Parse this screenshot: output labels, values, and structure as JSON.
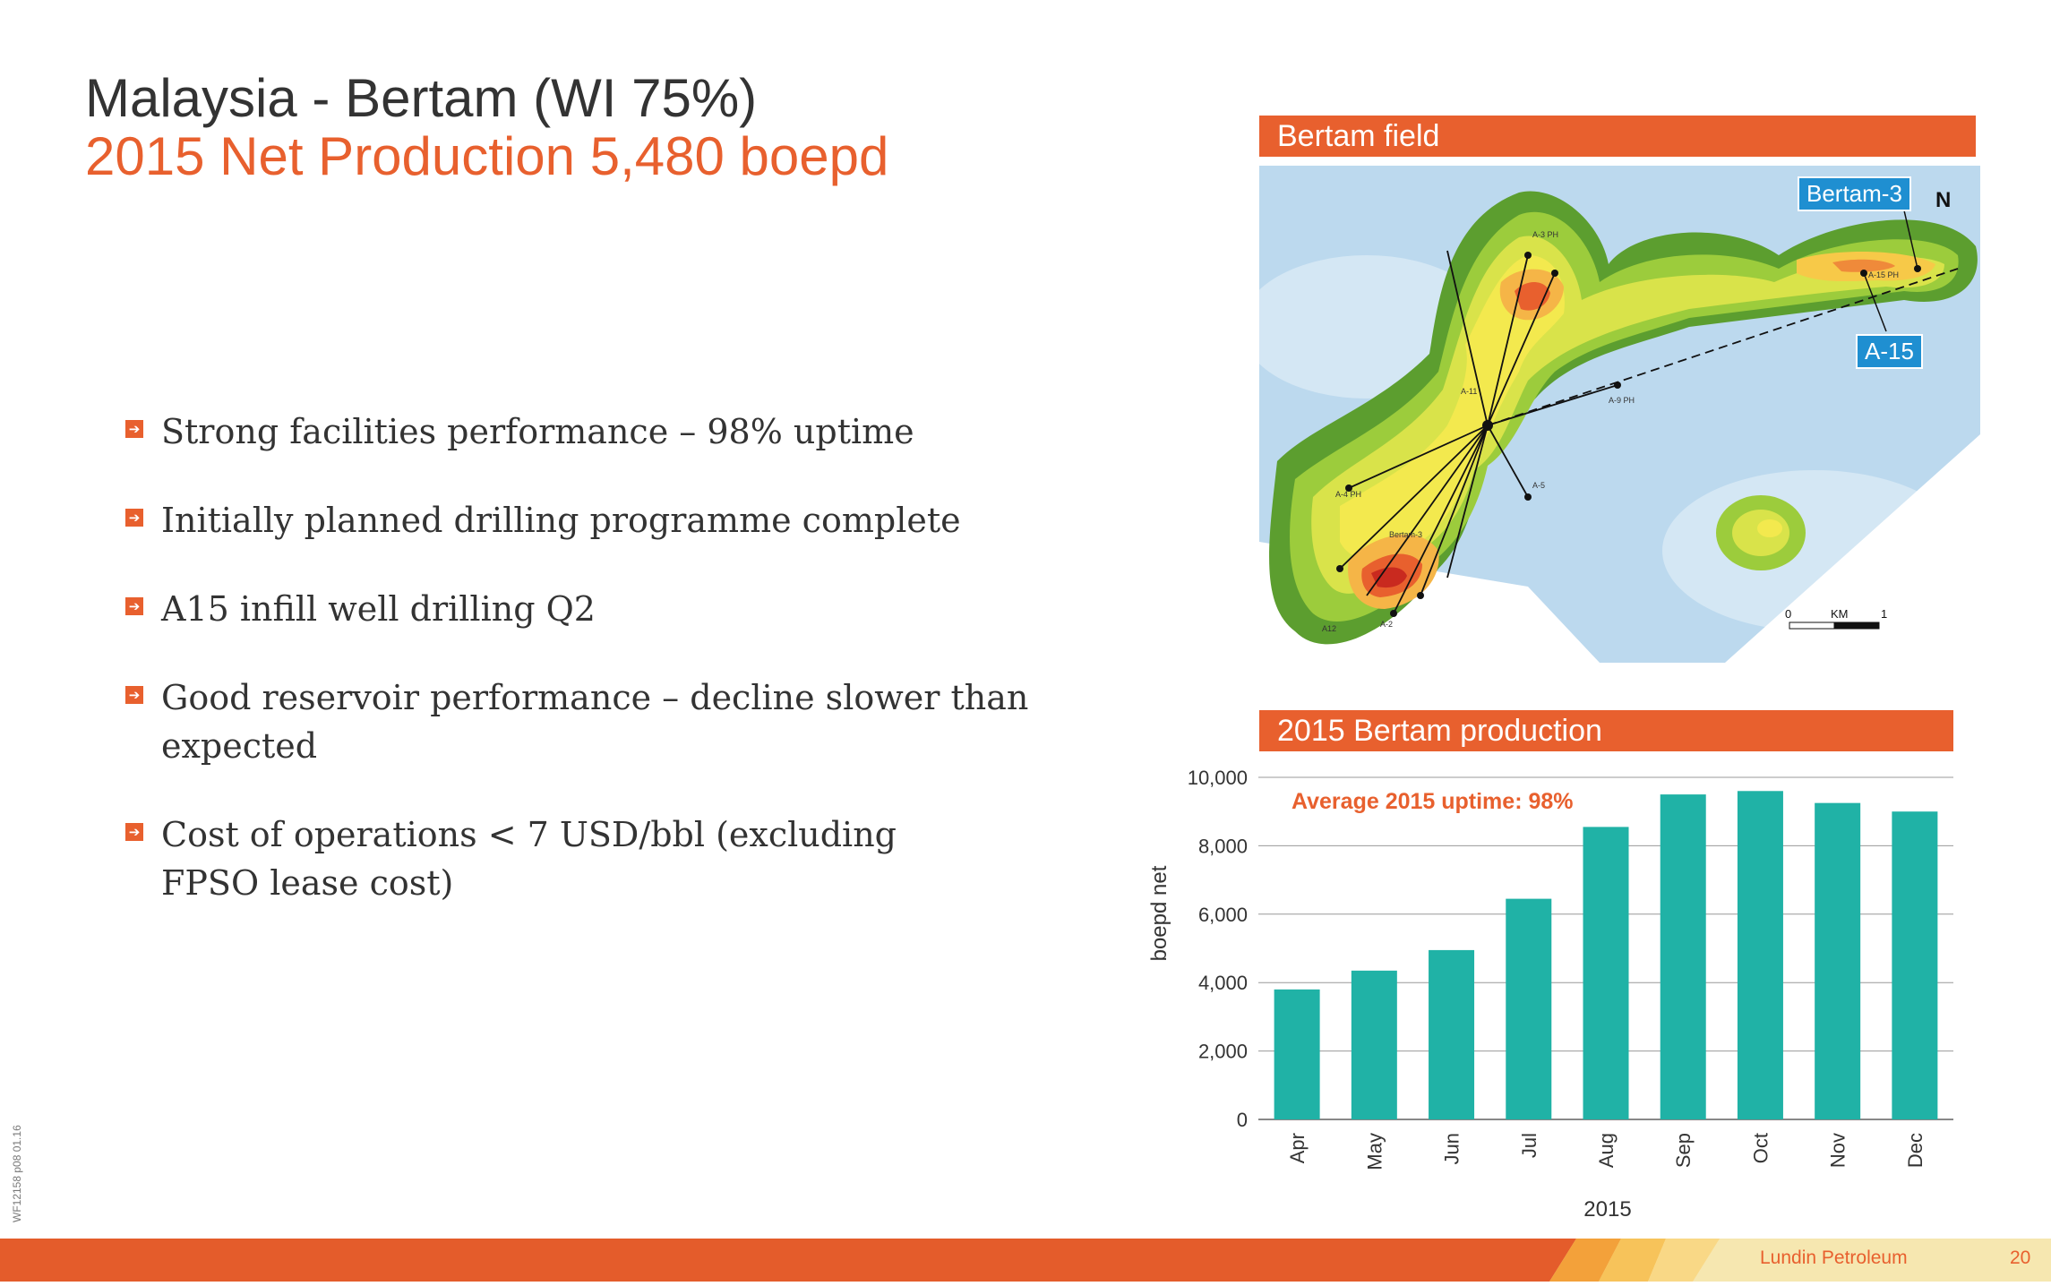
{
  "header": {
    "title_line1": "Malaysia - Bertam (WI 75%)",
    "title_line2": "2015 Net Production 5,480 boepd"
  },
  "bullets": [
    "Strong facilities performance – 98% uptime",
    "Initially planned drilling programme complete",
    "A15 infill well drilling Q2",
    "Good reservoir performance – decline slower than expected",
    "Cost of operations < 7 USD/bbl (excluding FPSO lease cost)"
  ],
  "map": {
    "header": "Bertam field",
    "callouts": {
      "bertam3": "Bertam-3",
      "a15": "A-15"
    },
    "north_label": "N",
    "scale": {
      "start": "0",
      "unit": "KM",
      "end": "1"
    },
    "well_labels": [
      "A-4 PH",
      "A-9 PH",
      "A-5",
      "A-11",
      "A12",
      "A-2",
      "A-3 PH",
      "Bertam-3",
      "A-15 PH"
    ]
  },
  "chart_header": "2015 Bertam production",
  "chart_data": {
    "type": "bar",
    "categories": [
      "Apr",
      "May",
      "Jun",
      "Jul",
      "Aug",
      "Sep",
      "Oct",
      "Nov",
      "Dec"
    ],
    "values": [
      3800,
      4350,
      4950,
      6450,
      8550,
      9500,
      9600,
      9250,
      9000
    ],
    "ylim": [
      0,
      10000
    ],
    "yticks": [
      0,
      2000,
      4000,
      6000,
      8000,
      10000
    ],
    "ytick_labels": [
      "0",
      "2,000",
      "4,000",
      "6,000",
      "8,000",
      "10,000"
    ],
    "xlabel": "2015",
    "ylabel": "boepd net",
    "annotation": "Average 2015 uptime: 98%",
    "grid": true,
    "bar_color": "#20b2a6",
    "annotation_color": "#e8602e"
  },
  "footer": {
    "brand": "Lundin Petroleum",
    "page": "20",
    "side_code": "WF12158  p08  01.16"
  },
  "colors": {
    "accent": "#e8602e",
    "title_text": "#333333",
    "callout_blue": "#1f8fd1"
  }
}
